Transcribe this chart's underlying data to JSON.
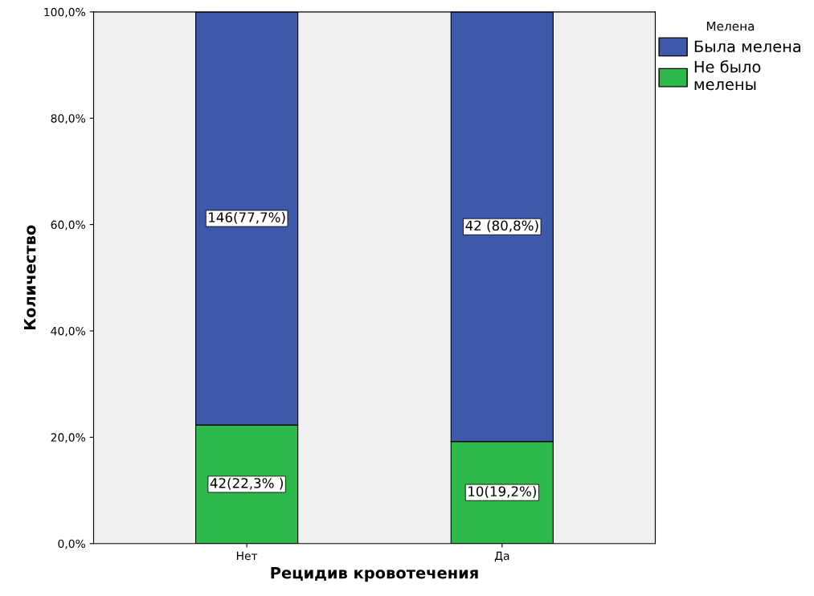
{
  "chart_data": {
    "type": "bar",
    "stacked": true,
    "xlabel": "Рецидив кровотечения",
    "ylabel": "Количество",
    "legend_title": "Мелена",
    "categories": [
      "Нет",
      "Да"
    ],
    "series": [
      {
        "name": "Не было мелены",
        "color": "#2db84a",
        "values": [
          22.3,
          19.2
        ],
        "value_labels": [
          "42(22,3% )",
          "10(19,2%)"
        ]
      },
      {
        "name": "Была мелена",
        "color": "#3e58ac",
        "values": [
          77.7,
          80.8
        ],
        "value_labels": [
          "146(77,7%)",
          "42 (80,8%)"
        ]
      }
    ],
    "ylim": [
      0,
      100
    ],
    "yticks": [
      {
        "value": 0,
        "label": "0,0%"
      },
      {
        "value": 20,
        "label": "20,0%"
      },
      {
        "value": 40,
        "label": "40,0%"
      },
      {
        "value": 60,
        "label": "60,0%"
      },
      {
        "value": 80,
        "label": "80,0%"
      },
      {
        "value": 100,
        "label": "100,0%"
      }
    ],
    "grid": false,
    "legend": "top right"
  }
}
